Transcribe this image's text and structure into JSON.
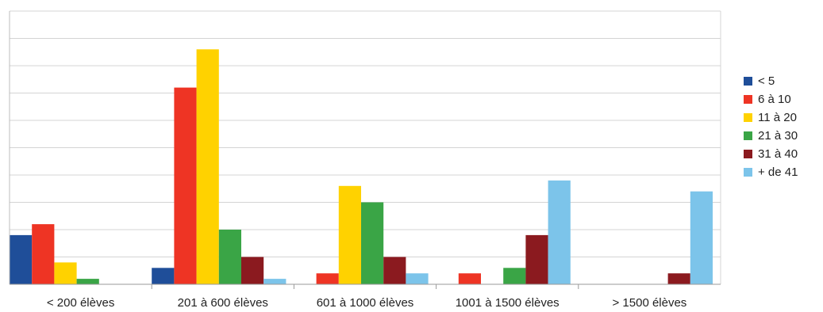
{
  "chart_data": {
    "type": "bar",
    "title": "",
    "xlabel": "",
    "ylabel": "",
    "categories": [
      "< 200 élèves",
      "201 à 600 élèves",
      "601 à 1000 élèves",
      "1001 à 1500 élèves",
      "> 1500 élèves"
    ],
    "series": [
      {
        "name": "< 5",
        "color": "#1f4e99",
        "values": [
          9,
          3,
          0,
          0,
          0
        ]
      },
      {
        "name": "6 à 10",
        "color": "#ee3424",
        "values": [
          11,
          36,
          2,
          2,
          0
        ]
      },
      {
        "name": "11 à 20",
        "color": "#ffd200",
        "values": [
          4,
          43,
          18,
          0,
          0
        ]
      },
      {
        "name": "21 à 30",
        "color": "#3aa546",
        "values": [
          1,
          10,
          15,
          3,
          0
        ]
      },
      {
        "name": "31 à 40",
        "color": "#8b1a1f",
        "values": [
          0,
          5,
          5,
          9,
          2
        ]
      },
      {
        "name": "+ de 41",
        "color": "#7cc4ea",
        "values": [
          0,
          1,
          2,
          19,
          17
        ]
      }
    ],
    "ylim": [
      0,
      50
    ],
    "y_grid_step": 5,
    "grid": true,
    "legend_position": "right"
  }
}
